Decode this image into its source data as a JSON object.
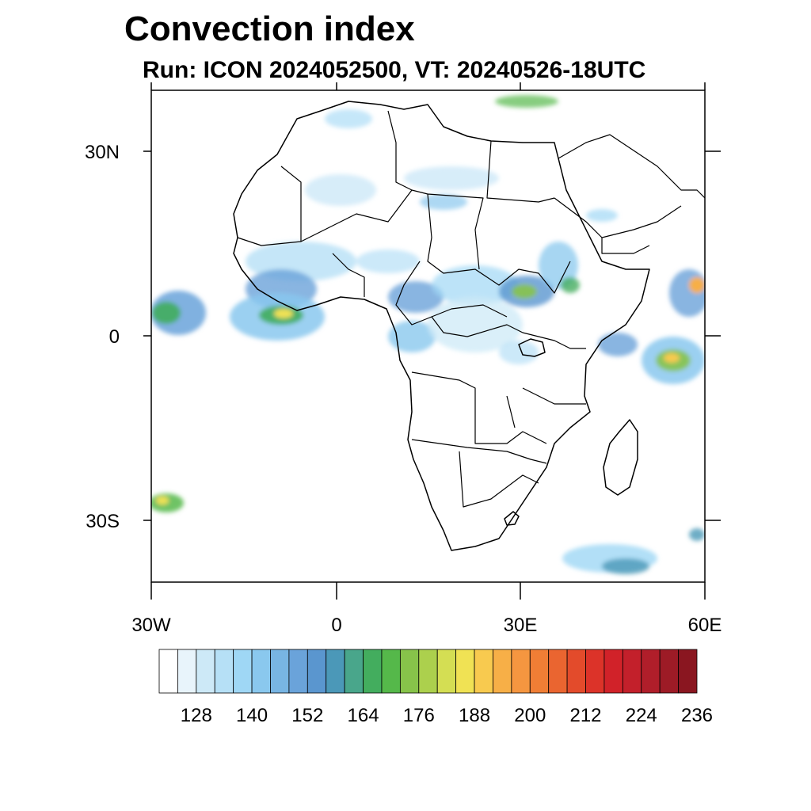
{
  "title": "Convection index",
  "subtitle": "Run: ICON 2024052500,  VT: 20240526-18UTC",
  "lat_labels": [
    "30N",
    "0",
    "30S"
  ],
  "lon_labels": [
    "30W",
    "0",
    "30E",
    "60E"
  ],
  "colorbar": {
    "labels": [
      "128",
      "140",
      "152",
      "164",
      "176",
      "188",
      "200",
      "212",
      "224",
      "236"
    ],
    "colors": [
      "#ffffff",
      "#e8f4fb",
      "#cde9f7",
      "#b6e0f6",
      "#9fd7f5",
      "#8ac8ee",
      "#78b5e3",
      "#6aa3da",
      "#5a96cf",
      "#4b98b8",
      "#49a68b",
      "#43ad5e",
      "#55b84a",
      "#87c34a",
      "#acd04d",
      "#d4de53",
      "#f0e254",
      "#f8ca4f",
      "#f7af47",
      "#f59640",
      "#f07e35",
      "#ea6530",
      "#e34b2b",
      "#dc3329",
      "#d12229",
      "#c3202b",
      "#b01e2a",
      "#9d1b26",
      "#8a1620"
    ]
  },
  "icons": [
    "map-of-africa",
    "convection-areas"
  ]
}
